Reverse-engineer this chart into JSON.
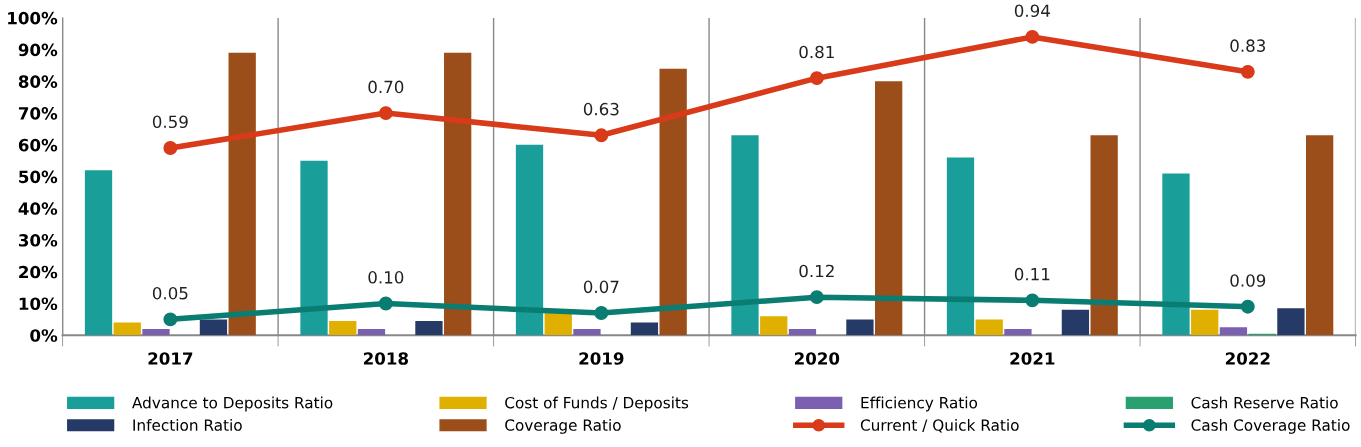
{
  "chart_data": {
    "type": "bar",
    "categories": [
      "2017",
      "2018",
      "2019",
      "2020",
      "2021",
      "2022"
    ],
    "ylim": [
      0,
      1
    ],
    "yticks": [
      {
        "value": 0,
        "label": "0%"
      },
      {
        "value": 0.1,
        "label": "10%"
      },
      {
        "value": 0.2,
        "label": "20%"
      },
      {
        "value": 0.3,
        "label": "30%"
      },
      {
        "value": 0.4,
        "label": "40%"
      },
      {
        "value": 0.5,
        "label": "50%"
      },
      {
        "value": 0.6,
        "label": "60%"
      },
      {
        "value": 0.7,
        "label": "70%"
      },
      {
        "value": 0.8,
        "label": "80%"
      },
      {
        "value": 0.9,
        "label": "90%"
      },
      {
        "value": 1,
        "label": "100%"
      }
    ],
    "grid": "x",
    "legend": "bottom",
    "series": [
      {
        "name": "Advance to Deposits Ratio",
        "color": "#1a9e9a",
        "values": [
          0.52,
          0.55,
          0.6,
          0.63,
          0.56,
          0.51
        ]
      },
      {
        "name": "Cost of Funds / Deposits",
        "color": "#e0b000",
        "values": [
          0.04,
          0.045,
          0.07,
          0.06,
          0.05,
          0.08
        ]
      },
      {
        "name": "Efficiency Ratio",
        "color": "#7b5fb0",
        "values": [
          0.02,
          0.02,
          0.02,
          0.02,
          0.02,
          0.025
        ]
      },
      {
        "name": "Cash Reserve Ratio",
        "color": "#2aa070",
        "values": [
          0,
          0,
          0,
          0,
          0,
          0.005
        ]
      },
      {
        "name": "Infection Ratio",
        "color": "#253a66",
        "values": [
          0.05,
          0.045,
          0.04,
          0.05,
          0.08,
          0.085
        ]
      },
      {
        "name": "Coverage Ratio",
        "color": "#9c4e1a",
        "values": [
          0.89,
          0.89,
          0.84,
          0.8,
          0.63,
          0.63
        ]
      },
      {
        "name": "Current / Quick Ratio",
        "type": "line",
        "marker": "circle",
        "color": "#d83a1a",
        "values": [
          0.59,
          0.7,
          0.63,
          0.81,
          0.94,
          0.83
        ],
        "value_labels": [
          "0.59",
          "0.70",
          "0.63",
          "0.81",
          "0.94",
          "0.83"
        ]
      },
      {
        "name": "Cash Coverage Ratio",
        "type": "line",
        "marker": "circle",
        "color": "#0a7d72",
        "values": [
          0.05,
          0.1,
          0.07,
          0.12,
          0.11,
          0.09
        ],
        "value_labels": [
          "0.05",
          "0.10",
          "0.07",
          "0.12",
          "0.11",
          "0.09"
        ]
      }
    ]
  }
}
